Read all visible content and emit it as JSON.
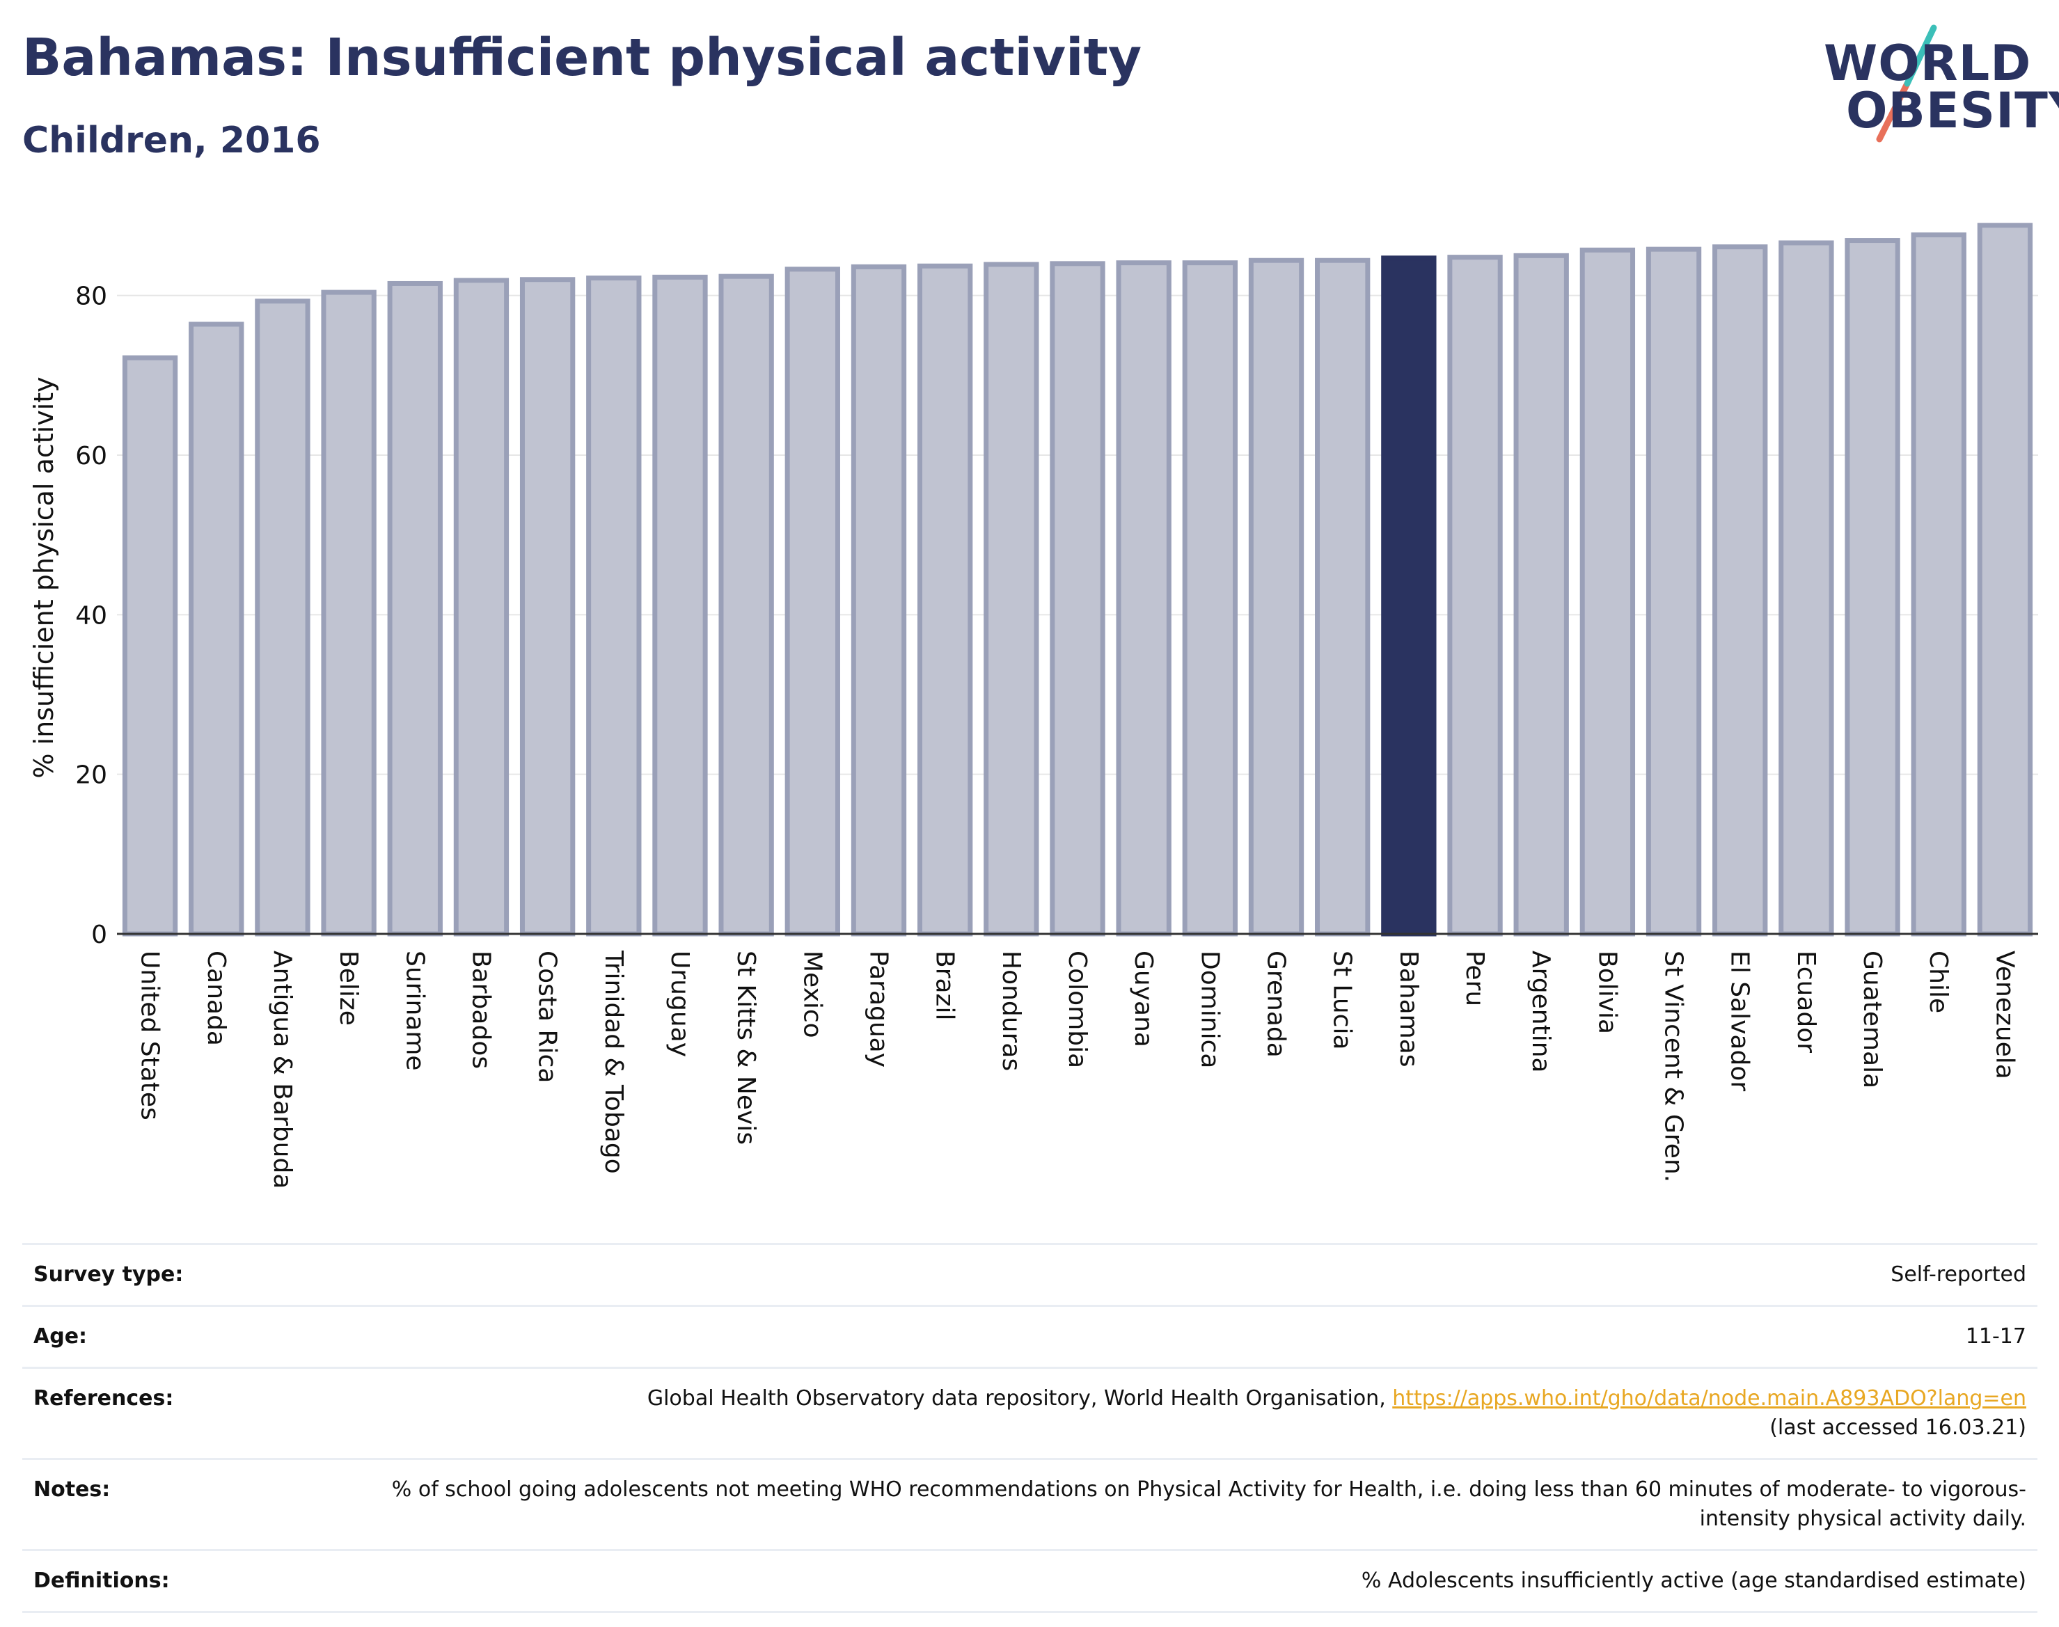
{
  "header": {
    "title": "Bahamas: Insufficient physical activity",
    "subtitle": "Children, 2016"
  },
  "logo": {
    "line1": "WORLD",
    "line2": "OBESITY",
    "slash_colors": [
      "#3bbfb8",
      "#e8705a"
    ]
  },
  "colors": {
    "bar": "#c0c3d1",
    "bar_edge": "#9aa0b8",
    "highlight": "#2a3360",
    "grid": "#e6e6e6",
    "link": "#e8a722"
  },
  "chart_data": {
    "type": "bar",
    "ylabel": "% insufficient physical activity",
    "ylim": [
      0,
      90
    ],
    "yticks": [
      0,
      20,
      40,
      60,
      80
    ],
    "highlight": "Bahamas",
    "grid": true,
    "categories": [
      "United States",
      "Canada",
      "Antigua & Barbuda",
      "Belize",
      "Suriname",
      "Barbados",
      "Costa Rica",
      "Trinidad & Tobago",
      "Uruguay",
      "St Kitts & Nevis",
      "Mexico",
      "Paraguay",
      "Brazil",
      "Honduras",
      "Colombia",
      "Guyana",
      "Dominica",
      "Grenada",
      "St Lucia",
      "Bahamas",
      "Peru",
      "Argentina",
      "Bolivia",
      "St Vincent & Gren.",
      "El Salvador",
      "Ecuador",
      "Guatemala",
      "Chile",
      "Venezuela"
    ],
    "values": [
      72.2,
      76.4,
      79.3,
      80.4,
      81.5,
      81.9,
      82.0,
      82.2,
      82.3,
      82.4,
      83.3,
      83.6,
      83.7,
      83.9,
      84.0,
      84.1,
      84.1,
      84.4,
      84.4,
      84.7,
      84.8,
      85.0,
      85.7,
      85.8,
      86.1,
      86.6,
      86.9,
      87.6,
      88.8
    ]
  },
  "meta": [
    {
      "key": "Survey type:",
      "value": "Self-reported"
    },
    {
      "key": "Age:",
      "value": "11-17"
    },
    {
      "key": "References:",
      "value": "Global Health Observatory data repository, World Health Organisation, ",
      "link": "https://apps.who.int/gho/data/node.main.A893ADO?lang=en",
      "value2": "(last accessed 16.03.21)"
    },
    {
      "key": "Notes:",
      "value": "% of school going adolescents not meeting WHO recommendations on Physical Activity for Health, i.e. doing less than 60 minutes of moderate- to vigorous-intensity physical activity daily."
    },
    {
      "key": "Definitions:",
      "value": "% Adolescents insufficiently active (age standardised estimate)"
    }
  ]
}
